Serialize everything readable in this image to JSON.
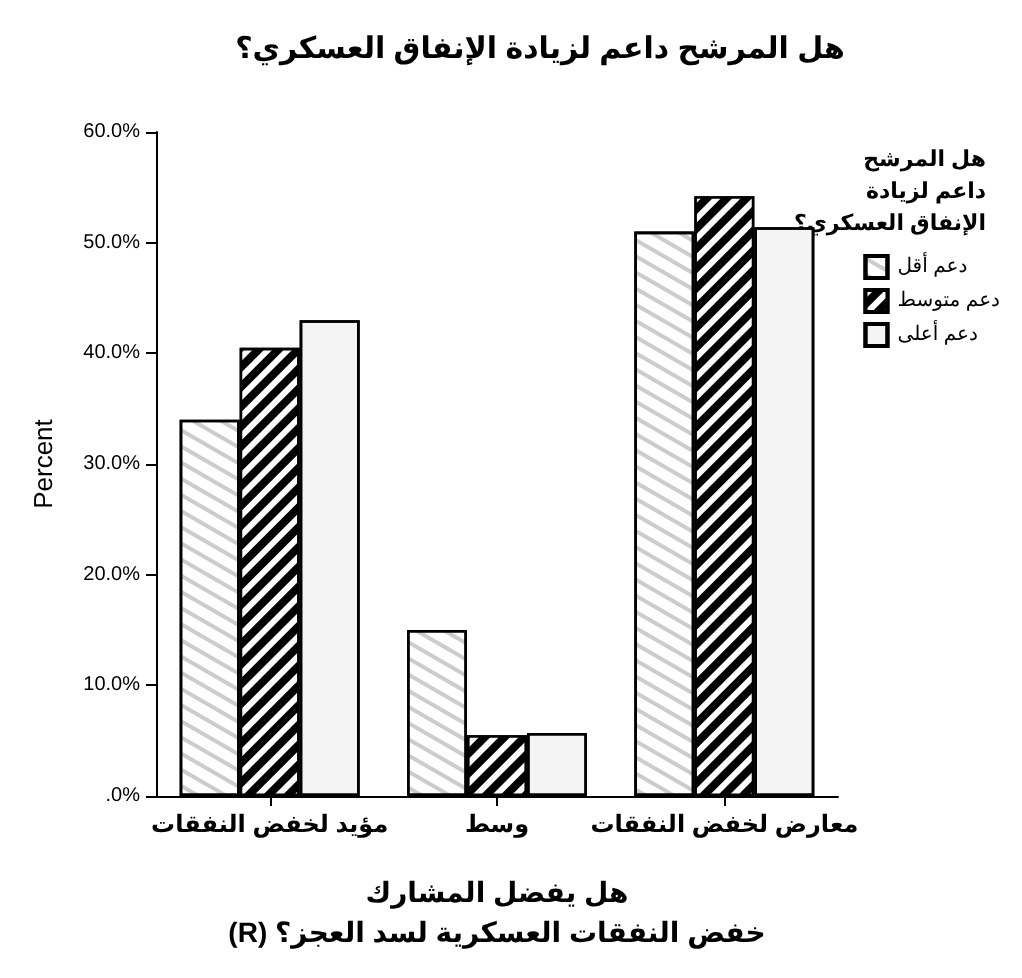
{
  "chart_data": {
    "type": "bar",
    "title": "هل المرشح داعم لزيادة الإنفاق العسكري؟",
    "xlabel": "هل يفضل المشارك\n(R) خفض النفقات العسكرية لسد العجز؟",
    "ylabel": "Percent",
    "legend_title": "هل المرشح داعم لزيادة الإنفاق العسكري؟",
    "categories": [
      "مؤيد لخفض النفقات",
      "وسط",
      "معارض لخفض النفقات"
    ],
    "series": [
      {
        "name": "دعم أقل",
        "color": "#ffffff",
        "values": [
          34,
          15,
          51
        ]
      },
      {
        "name": "دعم متوسط",
        "color": "#000000",
        "values": [
          40.5,
          5.5,
          54.2
        ]
      },
      {
        "name": "دعم أعلى",
        "color": "#f4f4f4",
        "values": [
          43,
          5.7,
          51.4
        ]
      }
    ],
    "ylim": [
      0,
      60
    ],
    "yticks": [
      {
        "value": 0,
        "label": ".0%"
      },
      {
        "value": 10,
        "label": "10.0%"
      },
      {
        "value": 20,
        "label": "20.0%"
      },
      {
        "value": 30,
        "label": "30.0%"
      },
      {
        "value": 40,
        "label": "40.0%"
      },
      {
        "value": 50,
        "label": "50.0%"
      },
      {
        "value": 60,
        "label": "60.0%"
      }
    ],
    "grid": false,
    "legend": "right"
  }
}
